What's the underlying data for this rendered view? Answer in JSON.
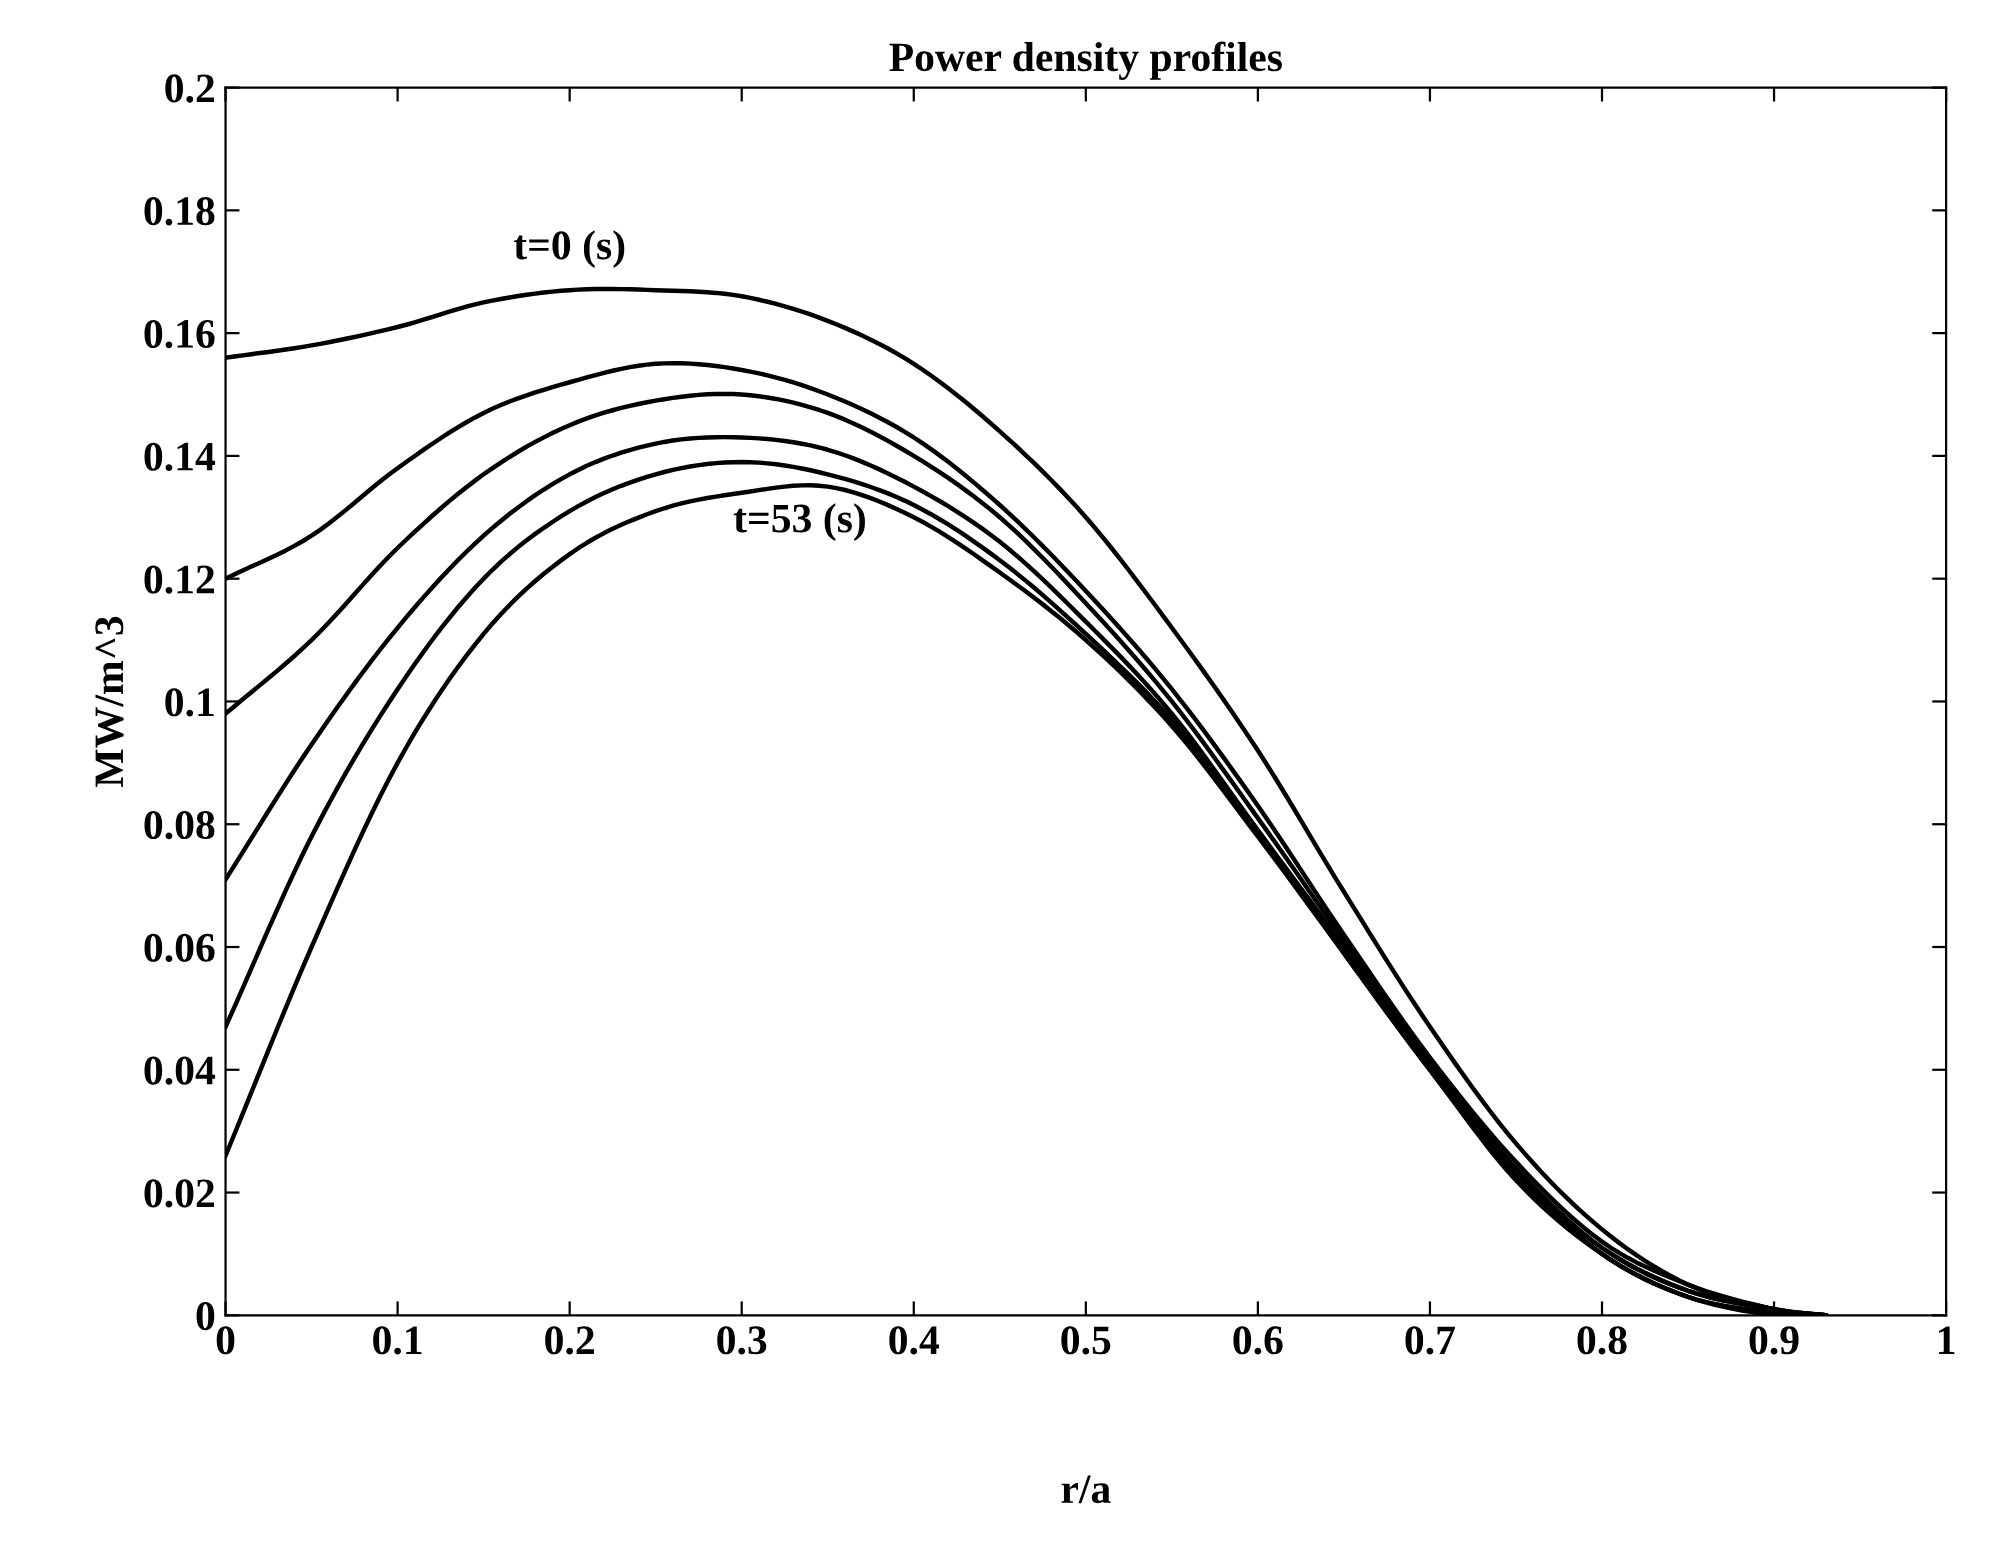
{
  "chart_data": {
    "type": "line",
    "title": "Power density profiles",
    "xlabel": "r/a",
    "ylabel": "MW/m^3",
    "x": [
      0,
      0.05,
      0.1,
      0.15,
      0.2,
      0.25,
      0.3,
      0.35,
      0.4,
      0.45,
      0.5,
      0.55,
      0.6,
      0.65,
      0.7,
      0.75,
      0.8,
      0.85,
      0.9,
      0.93
    ],
    "series": [
      {
        "color": "#000000",
        "values": [
          0.156,
          0.158,
          0.161,
          0.165,
          0.167,
          0.167,
          0.166,
          0.162,
          0.155,
          0.144,
          0.13,
          0.112,
          0.092,
          0.069,
          0.047,
          0.028,
          0.014,
          0.005,
          0.001,
          0
        ]
      },
      {
        "color": "#000000",
        "values": [
          0.12,
          0.127,
          0.138,
          0.147,
          0.152,
          0.155,
          0.154,
          0.15,
          0.143,
          0.132,
          0.118,
          0.102,
          0.083,
          0.062,
          0.042,
          0.025,
          0.012,
          0.005,
          0.001,
          0
        ]
      },
      {
        "color": "#000000",
        "values": [
          0.098,
          0.11,
          0.125,
          0.137,
          0.145,
          0.149,
          0.15,
          0.147,
          0.14,
          0.13,
          0.116,
          0.1,
          0.081,
          0.061,
          0.041,
          0.024,
          0.011,
          0.004,
          0.001,
          0
        ]
      },
      {
        "color": "#000000",
        "values": [
          0.071,
          0.093,
          0.112,
          0.127,
          0.137,
          0.142,
          0.143,
          0.141,
          0.135,
          0.126,
          0.113,
          0.098,
          0.079,
          0.06,
          0.04,
          0.023,
          0.011,
          0.004,
          0.001,
          0
        ]
      },
      {
        "color": "#000000",
        "values": [
          0.047,
          0.078,
          0.102,
          0.12,
          0.131,
          0.137,
          0.139,
          0.137,
          0.132,
          0.123,
          0.111,
          0.097,
          0.079,
          0.059,
          0.04,
          0.023,
          0.01,
          0.003,
          0.0005,
          0
        ]
      },
      {
        "color": "#000000",
        "values": [
          0.026,
          0.06,
          0.09,
          0.111,
          0.124,
          0.131,
          0.134,
          0.135,
          0.13,
          0.121,
          0.11,
          0.096,
          0.078,
          0.059,
          0.04,
          0.022,
          0.01,
          0.003,
          0,
          0
        ]
      }
    ],
    "annotations": [
      "t=0 (s)",
      "t=53 (s)"
    ],
    "xlim": [
      0,
      1
    ],
    "ylim": [
      0,
      0.2
    ],
    "xticks": [
      0,
      0.1,
      0.2,
      0.3,
      0.4,
      0.5,
      0.6,
      0.7,
      0.8,
      0.9,
      1
    ],
    "yticks": [
      0,
      0.02,
      0.04,
      0.06,
      0.08,
      0.1,
      0.12,
      0.14,
      0.16,
      0.18,
      0.2
    ],
    "grid": false,
    "legend": false,
    "marker": "none",
    "line_style": "solid"
  }
}
